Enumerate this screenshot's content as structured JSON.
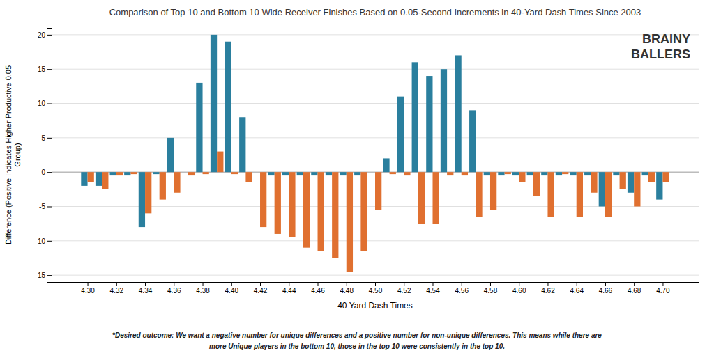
{
  "chart_data": {
    "type": "bar",
    "title": "Comparison of Top 10 and Bottom 10 Wide Receiver Finishes Based on 0.05-Second Increments in 40-Yard Dash Times Since 2003",
    "x_label": "40 Yard Dash Times",
    "y_label": "Difference (Positive Indicates Higher Productive 0.05\nGroup)",
    "annotations": [
      "*Desired outcome: We want a negative number for unique differences and a positive number for non-unique differences. This means while there are",
      "more Unique players in the bottom 10, those in the top 10 were consistently in the top 10.",
      "BRAINY",
      "BALLERS"
    ],
    "x": [
      4.3,
      4.31,
      4.32,
      4.33,
      4.34,
      4.35,
      4.36,
      4.37,
      4.38,
      4.39,
      4.4,
      4.41,
      4.42,
      4.43,
      4.44,
      4.45,
      4.46,
      4.47,
      4.48,
      4.49,
      4.5,
      4.51,
      4.52,
      4.53,
      4.54,
      4.55,
      4.56,
      4.57,
      4.58,
      4.59,
      4.6,
      4.61,
      4.62,
      4.63,
      4.64,
      4.65,
      4.66,
      4.67,
      4.68,
      4.69,
      4.7
    ],
    "series": [
      {
        "color": "#2A7F9E",
        "values": [
          -2.0,
          -2.0,
          -0.5,
          -0.5,
          -8.0,
          -0.3,
          5.0,
          0.0,
          13.0,
          20.0,
          19.0,
          8.0,
          0.0,
          -0.5,
          -0.5,
          -0.5,
          -0.5,
          -0.5,
          -0.5,
          -0.5,
          0.0,
          2.0,
          11.0,
          16.0,
          14.0,
          15.0,
          17.0,
          9.0,
          -0.5,
          -0.5,
          -0.5,
          -0.5,
          -0.5,
          -0.5,
          -0.5,
          -0.5,
          -5.0,
          -0.5,
          -3.0,
          -0.5,
          -4.0
        ]
      },
      {
        "color": "#E07030",
        "values": [
          -1.5,
          -2.5,
          -0.5,
          -0.3,
          -6.0,
          -4.0,
          -3.0,
          -0.5,
          -0.3,
          3.0,
          -0.3,
          -1.5,
          -8.0,
          -9.0,
          -9.5,
          -11.0,
          -11.5,
          -12.5,
          -14.5,
          -11.5,
          -5.5,
          -0.3,
          -0.5,
          -7.5,
          -7.5,
          -0.5,
          -0.5,
          -6.5,
          -5.5,
          -0.3,
          -1.5,
          -3.5,
          -6.5,
          -0.3,
          -6.5,
          -3.0,
          -6.5,
          -2.5,
          -5.0,
          -1.5,
          -1.5
        ]
      }
    ],
    "xlim": [
      4.275,
      4.725
    ],
    "ylim": [
      -16,
      21
    ],
    "xticks": [
      {
        "value": 4.3,
        "label": "4.30"
      },
      4.32,
      4.34,
      4.36,
      4.38,
      {
        "value": 4.4,
        "label": "4.40"
      },
      4.42,
      4.44,
      4.46,
      4.48,
      {
        "value": 4.5,
        "label": "4.50"
      },
      4.52,
      4.54,
      4.56,
      4.58,
      {
        "value": 4.6,
        "label": "4.60"
      },
      4.62,
      4.64,
      4.66,
      4.68,
      {
        "value": 4.7,
        "label": "4.70"
      }
    ],
    "yticks": [
      -15,
      -10,
      -5,
      0,
      5,
      10,
      15,
      20
    ],
    "grid": true
  }
}
